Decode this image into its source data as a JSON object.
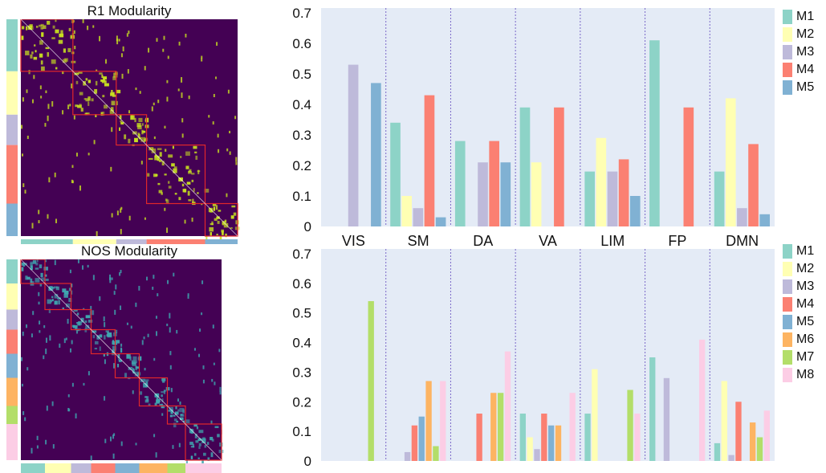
{
  "panels": {
    "top_title": "R1 Modularity",
    "bottom_title": "NOS Modularity"
  },
  "colors": {
    "matrix_bg": "#440154",
    "top_module_fill": "#c8e020",
    "bottom_module_fill": "#3fa7b0",
    "module_border": "#e0272a",
    "plot_bg": "#e4ebf6",
    "divider": "#7b68c8"
  },
  "matrix_strip_colors": {
    "top": [
      "#8dd3c7",
      "#ffffb3",
      "#bebada",
      "#fb8072",
      "#80b1d3"
    ],
    "bottom": [
      "#8dd3c7",
      "#ffffb3",
      "#bebada",
      "#fb8072",
      "#80b1d3",
      "#fdb462",
      "#b3de69",
      "#fccde5"
    ]
  },
  "chart_data": [
    {
      "type": "bar",
      "categories": [
        "VIS",
        "SM",
        "DA",
        "VA",
        "LIM",
        "FP",
        "DMN"
      ],
      "ylim": [
        0,
        0.7
      ],
      "yticks": [
        "0",
        "0.1",
        "0.2",
        "0.3",
        "0.4",
        "0.5",
        "0.6",
        "0.7"
      ],
      "series": [
        {
          "name": "M1",
          "color": "#8dd3c7",
          "values": [
            0.0,
            0.34,
            0.28,
            0.39,
            0.18,
            0.61,
            0.18
          ]
        },
        {
          "name": "M2",
          "color": "#ffffb3",
          "values": [
            0.0,
            0.1,
            0.0,
            0.21,
            0.29,
            0.0,
            0.42
          ]
        },
        {
          "name": "M3",
          "color": "#bebada",
          "values": [
            0.53,
            0.06,
            0.21,
            0.0,
            0.18,
            0.0,
            0.06
          ]
        },
        {
          "name": "M4",
          "color": "#fb8072",
          "values": [
            0.0,
            0.43,
            0.28,
            0.39,
            0.22,
            0.39,
            0.27
          ]
        },
        {
          "name": "M5",
          "color": "#80b1d3",
          "values": [
            0.47,
            0.03,
            0.21,
            0.0,
            0.1,
            0.0,
            0.04
          ]
        }
      ]
    },
    {
      "type": "bar",
      "categories": [
        "VIS",
        "SM",
        "DA",
        "VA",
        "LIM",
        "FP",
        "DMN"
      ],
      "ylim": [
        0,
        0.7
      ],
      "yticks": [
        "0",
        "0.1",
        "0.2",
        "0.3",
        "0.4",
        "0.5",
        "0.6",
        "0.7"
      ],
      "series": [
        {
          "name": "M1",
          "color": "#8dd3c7",
          "values": [
            0.0,
            0.0,
            0.0,
            0.16,
            0.16,
            0.35,
            0.06
          ]
        },
        {
          "name": "M2",
          "color": "#ffffb3",
          "values": [
            0.0,
            0.0,
            0.0,
            0.08,
            0.31,
            0.0,
            0.27
          ]
        },
        {
          "name": "M3",
          "color": "#bebada",
          "values": [
            0.0,
            0.03,
            0.0,
            0.04,
            0.0,
            0.28,
            0.02
          ]
        },
        {
          "name": "M4",
          "color": "#fb8072",
          "values": [
            0.0,
            0.12,
            0.16,
            0.16,
            0.0,
            0.0,
            0.2
          ]
        },
        {
          "name": "M5",
          "color": "#80b1d3",
          "values": [
            0.0,
            0.15,
            0.0,
            0.12,
            0.0,
            0.0,
            0.0
          ]
        },
        {
          "name": "M6",
          "color": "#fdb462",
          "values": [
            0.0,
            0.27,
            0.23,
            0.12,
            0.0,
            0.0,
            0.13
          ]
        },
        {
          "name": "M7",
          "color": "#b3de69",
          "values": [
            0.54,
            0.05,
            0.23,
            0.0,
            0.24,
            0.0,
            0.08
          ]
        },
        {
          "name": "M8",
          "color": "#fccde5",
          "values": [
            0.0,
            0.27,
            0.37,
            0.23,
            0.16,
            0.41,
            0.17
          ]
        }
      ]
    }
  ]
}
